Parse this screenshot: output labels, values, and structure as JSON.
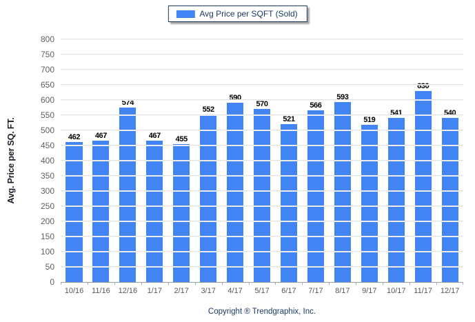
{
  "chart_data": {
    "type": "bar",
    "title": "",
    "legend": "Avg Price per SQFT (Sold)",
    "legend_position": "top-center",
    "xlabel": "",
    "ylabel": "Avg. Price per SQ. FT.",
    "ylim": [
      0,
      800
    ],
    "ytick_step": 50,
    "grid": true,
    "categories": [
      "10/16",
      "11/16",
      "12/16",
      "1/17",
      "2/17",
      "3/17",
      "4/17",
      "5/17",
      "6/17",
      "7/17",
      "8/17",
      "9/17",
      "10/17",
      "11/17",
      "12/17"
    ],
    "values": [
      462,
      467,
      574,
      467,
      455,
      552,
      590,
      570,
      521,
      566,
      593,
      519,
      541,
      630,
      540
    ]
  },
  "footer": {
    "copyright": "Copyright ® Trendgraphix, Inc."
  },
  "colors": {
    "bar": "#4284f4",
    "grid": "#e2e2e2",
    "axis": "#999999",
    "tick_label": "#5f5f5f",
    "value_label": "#000000",
    "legend_text": "#17375e",
    "legend_border": "#16365c"
  }
}
